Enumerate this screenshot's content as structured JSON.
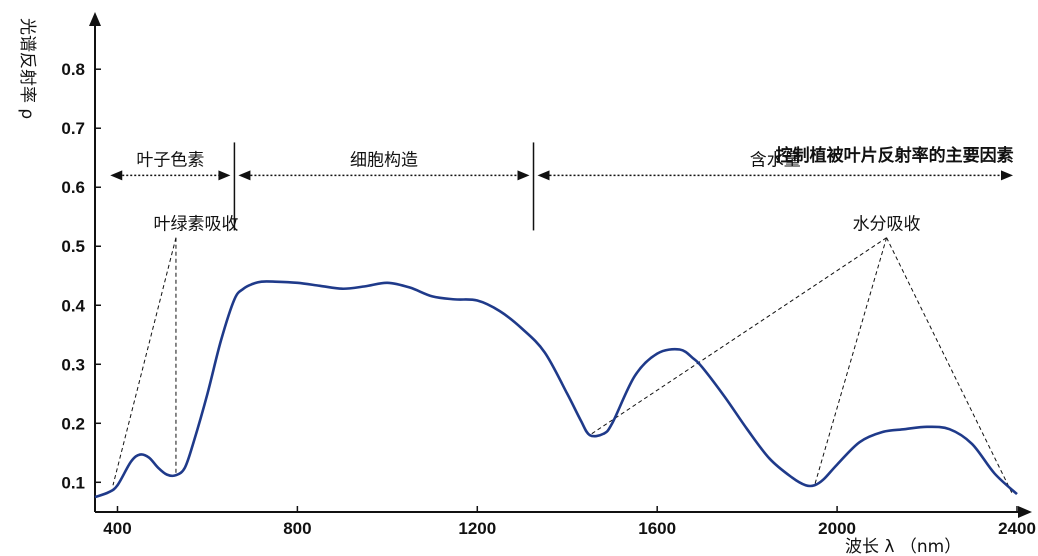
{
  "chart_data": {
    "type": "line",
    "title": "",
    "xlabel": "波长 λ （nm）",
    "ylabel": "光谱反射率 ρ",
    "xlim": [
      350,
      2400
    ],
    "ylim": [
      0.07,
      0.88
    ],
    "x_ticks": [
      400,
      800,
      1200,
      1600,
      2000,
      2400
    ],
    "x_tick_labels": [
      "400",
      "800",
      "1200",
      "1600",
      "2000",
      "2400"
    ],
    "y_ticks": [
      0.1,
      0.2,
      0.3,
      0.4,
      0.5,
      0.6,
      0.7,
      0.8
    ],
    "y_tick_labels": [
      "0.1",
      "0.2",
      "0.3",
      "0.4",
      "0.5",
      "0.6",
      "0.7",
      "0.8"
    ],
    "grid": false,
    "legend": "none",
    "line_color": "#1f3a8a",
    "series": [
      {
        "x": [
          350,
          380,
          400,
          430,
          450,
          470,
          490,
          510,
          530,
          550,
          570,
          600,
          630,
          660,
          680,
          700,
          720,
          750,
          800,
          850,
          900,
          950,
          1000,
          1050,
          1100,
          1150,
          1200,
          1250,
          1300,
          1350,
          1400,
          1430,
          1450,
          1480,
          1500,
          1550,
          1600,
          1650,
          1680,
          1700,
          1750,
          1800,
          1850,
          1900,
          1930,
          1950,
          1970,
          2000,
          2050,
          2100,
          2150,
          2200,
          2250,
          2300,
          2350,
          2400
        ],
        "y": [
          0.075,
          0.083,
          0.095,
          0.135,
          0.147,
          0.142,
          0.125,
          0.113,
          0.112,
          0.125,
          0.17,
          0.25,
          0.34,
          0.41,
          0.428,
          0.436,
          0.44,
          0.44,
          0.438,
          0.433,
          0.428,
          0.432,
          0.438,
          0.43,
          0.415,
          0.41,
          0.408,
          0.39,
          0.36,
          0.32,
          0.25,
          0.205,
          0.18,
          0.182,
          0.2,
          0.28,
          0.318,
          0.325,
          0.31,
          0.295,
          0.245,
          0.19,
          0.14,
          0.108,
          0.095,
          0.095,
          0.105,
          0.13,
          0.168,
          0.185,
          0.19,
          0.194,
          0.19,
          0.165,
          0.115,
          0.08
        ]
      }
    ],
    "regions": [
      {
        "label": "叶子色素",
        "x_start": 375,
        "x_end": 660
      },
      {
        "label": "细胞构造",
        "x_start": 660,
        "x_end": 1325
      },
      {
        "label": "含水量",
        "x_start": 1325,
        "x_end": 2400
      }
    ],
    "region_dividers": [
      660,
      1325
    ],
    "region_arrow_y": 0.62,
    "annotations": [
      {
        "text": "叶绿素吸收",
        "anchor_x": 530,
        "anchor_y": 0.545,
        "targets": [
          [
            390,
            0.095
          ],
          [
            530,
            0.112
          ]
        ]
      },
      {
        "text": "控制植被叶片反射率的主要因素",
        "anchor_x": 1950,
        "anchor_y": 0.655
      },
      {
        "text": "水分吸收",
        "anchor_x": 2110,
        "anchor_y": 0.545,
        "targets": [
          [
            1450,
            0.18
          ],
          [
            1950,
            0.095
          ],
          [
            2390,
            0.08
          ]
        ]
      }
    ]
  }
}
